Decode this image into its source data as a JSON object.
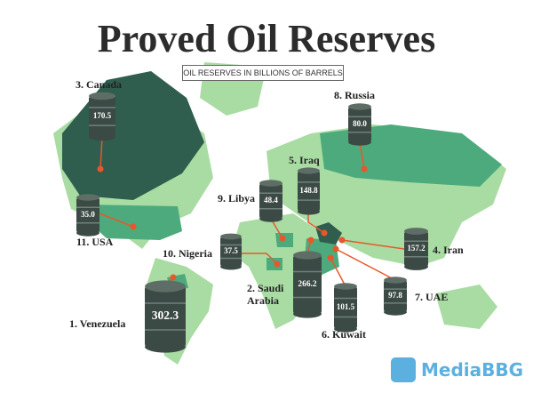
{
  "title": "Proved Oil Reserves",
  "subtitle": "OIL RESERVES IN BILLIONS OF BARRELS",
  "countries": [
    {
      "label": "1. Venezuela",
      "value": "302.3"
    },
    {
      "label": "2. Saudi Arabia",
      "value": "266.2"
    },
    {
      "label": "3. Canada",
      "value": "170.5"
    },
    {
      "label": "4. Iran",
      "value": "157.2"
    },
    {
      "label": "5. Iraq",
      "value": "148.8"
    },
    {
      "label": "6. Kuwait",
      "value": "101.5"
    },
    {
      "label": "7. UAE",
      "value": "97.8"
    },
    {
      "label": "8. Russia",
      "value": "80.0"
    },
    {
      "label": "9. Libya",
      "value": "48.4"
    },
    {
      "label": "10. Nigeria",
      "value": "37.5"
    },
    {
      "label": "11. USA",
      "value": "35.0"
    }
  ],
  "watermark": "MediaBBG"
}
